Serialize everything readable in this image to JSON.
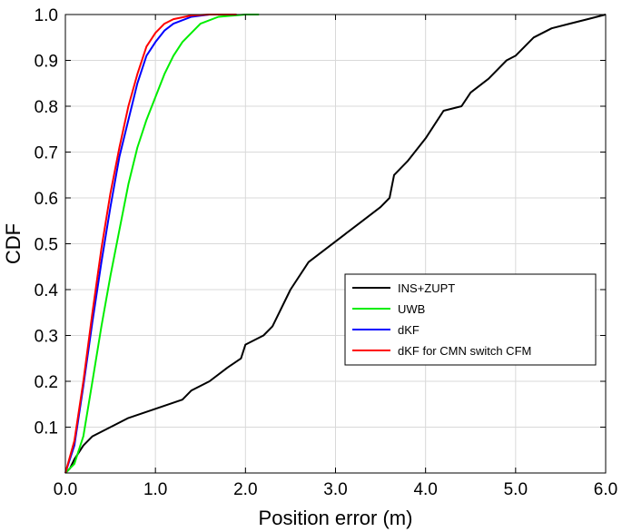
{
  "chart_data": {
    "type": "line",
    "title": "",
    "xlabel": "Position error (m)",
    "ylabel": "CDF",
    "xlim": [
      0,
      6
    ],
    "ylim": [
      0,
      1
    ],
    "grid": true,
    "legend_position": "center-right",
    "x_ticks": [
      "0.0",
      "1.0",
      "2.0",
      "3.0",
      "4.0",
      "5.0",
      "6.0"
    ],
    "y_ticks": [
      "0.1",
      "0.2",
      "0.3",
      "0.4",
      "0.5",
      "0.6",
      "0.7",
      "0.8",
      "0.9",
      "1.0"
    ],
    "series": [
      {
        "name": "INS+ZUPT",
        "color": "#000000",
        "points": [
          [
            0,
            0
          ],
          [
            0.05,
            0.01
          ],
          [
            0.1,
            0.03
          ],
          [
            0.2,
            0.06
          ],
          [
            0.3,
            0.08
          ],
          [
            0.5,
            0.1
          ],
          [
            0.7,
            0.12
          ],
          [
            1.0,
            0.14
          ],
          [
            1.3,
            0.16
          ],
          [
            1.4,
            0.18
          ],
          [
            1.6,
            0.2
          ],
          [
            1.8,
            0.23
          ],
          [
            1.95,
            0.25
          ],
          [
            2.0,
            0.28
          ],
          [
            2.2,
            0.3
          ],
          [
            2.3,
            0.32
          ],
          [
            2.5,
            0.4
          ],
          [
            2.7,
            0.46
          ],
          [
            2.9,
            0.49
          ],
          [
            3.1,
            0.52
          ],
          [
            3.3,
            0.55
          ],
          [
            3.5,
            0.58
          ],
          [
            3.6,
            0.6
          ],
          [
            3.65,
            0.65
          ],
          [
            3.8,
            0.68
          ],
          [
            4.0,
            0.73
          ],
          [
            4.2,
            0.79
          ],
          [
            4.4,
            0.8
          ],
          [
            4.5,
            0.83
          ],
          [
            4.7,
            0.86
          ],
          [
            4.9,
            0.9
          ],
          [
            5.0,
            0.91
          ],
          [
            5.1,
            0.93
          ],
          [
            5.2,
            0.95
          ],
          [
            5.4,
            0.97
          ],
          [
            5.6,
            0.98
          ],
          [
            5.8,
            0.99
          ],
          [
            6.0,
            1.0
          ]
        ]
      },
      {
        "name": "UWB",
        "color": "#00ee00",
        "points": [
          [
            0,
            0
          ],
          [
            0.1,
            0.02
          ],
          [
            0.2,
            0.08
          ],
          [
            0.3,
            0.2
          ],
          [
            0.4,
            0.32
          ],
          [
            0.5,
            0.43
          ],
          [
            0.6,
            0.53
          ],
          [
            0.7,
            0.63
          ],
          [
            0.8,
            0.71
          ],
          [
            0.9,
            0.77
          ],
          [
            1.0,
            0.82
          ],
          [
            1.1,
            0.87
          ],
          [
            1.2,
            0.91
          ],
          [
            1.3,
            0.94
          ],
          [
            1.4,
            0.96
          ],
          [
            1.5,
            0.98
          ],
          [
            1.7,
            0.995
          ],
          [
            2.0,
            1.0
          ],
          [
            2.15,
            1.0
          ]
        ]
      },
      {
        "name": "dKF",
        "color": "#0000ff",
        "points": [
          [
            0,
            0
          ],
          [
            0.1,
            0.06
          ],
          [
            0.2,
            0.19
          ],
          [
            0.3,
            0.33
          ],
          [
            0.4,
            0.46
          ],
          [
            0.5,
            0.58
          ],
          [
            0.6,
            0.69
          ],
          [
            0.7,
            0.77
          ],
          [
            0.8,
            0.85
          ],
          [
            0.9,
            0.91
          ],
          [
            1.0,
            0.94
          ],
          [
            1.1,
            0.965
          ],
          [
            1.2,
            0.98
          ],
          [
            1.4,
            0.995
          ],
          [
            1.6,
            1.0
          ],
          [
            1.9,
            1.0
          ]
        ]
      },
      {
        "name": "dKF for CMN switch CFM",
        "color": "#ff0000",
        "points": [
          [
            0,
            0
          ],
          [
            0.1,
            0.07
          ],
          [
            0.2,
            0.2
          ],
          [
            0.3,
            0.35
          ],
          [
            0.4,
            0.49
          ],
          [
            0.5,
            0.61
          ],
          [
            0.6,
            0.71
          ],
          [
            0.7,
            0.8
          ],
          [
            0.8,
            0.87
          ],
          [
            0.9,
            0.93
          ],
          [
            1.0,
            0.96
          ],
          [
            1.1,
            0.98
          ],
          [
            1.2,
            0.99
          ],
          [
            1.4,
            0.998
          ],
          [
            1.6,
            1.0
          ],
          [
            1.9,
            1.0
          ]
        ]
      }
    ]
  }
}
